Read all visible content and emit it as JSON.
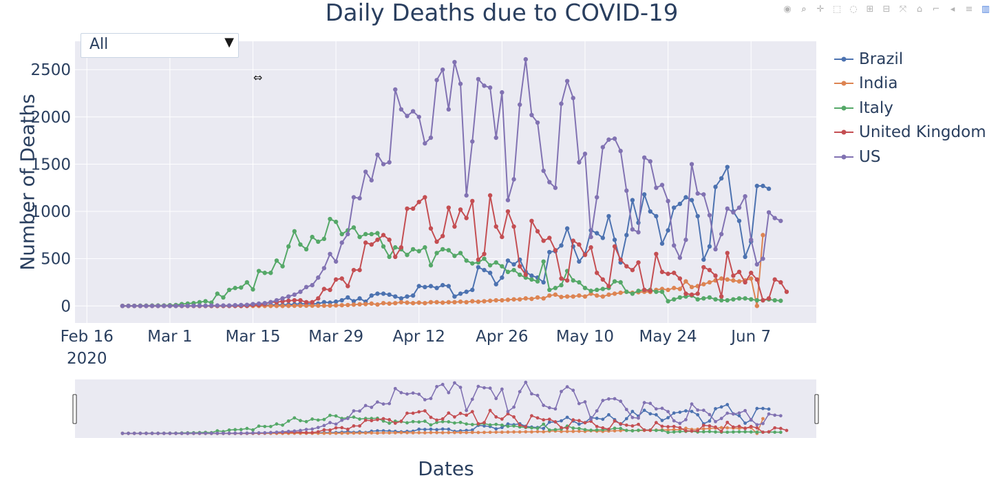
{
  "title": "Daily Deaths due to COVID-19",
  "dropdown": {
    "value": "All",
    "arrow": "▼"
  },
  "axes": {
    "x_title": "Dates",
    "y_title": "Number of Deaths",
    "x_year_label": "2020"
  },
  "modebar": [
    "camera-icon",
    "zoom-icon",
    "pan-icon",
    "box-select-icon",
    "lasso-icon",
    "zoom-in-icon",
    "zoom-out-icon",
    "autoscale-icon",
    "home-icon",
    "spike-lines-icon",
    "hover-closest-icon",
    "hover-compare-icon",
    "plotly-logo-icon"
  ],
  "chart_data": {
    "type": "line",
    "title": "Daily Deaths due to COVID-19",
    "xlabel": "Dates",
    "ylabel": "Number of Deaths",
    "x_start": "2020-02-22",
    "x_end": "2020-06-11",
    "x_range": [
      "2020-02-14",
      "2020-06-18"
    ],
    "ylim": [
      -180,
      2800
    ],
    "yticks": [
      0,
      500,
      1000,
      1500,
      2000,
      2500
    ],
    "xticks": [
      {
        "date": "2020-02-16",
        "label": "Feb 16"
      },
      {
        "date": "2020-03-01",
        "label": "Mar 1"
      },
      {
        "date": "2020-03-15",
        "label": "Mar 15"
      },
      {
        "date": "2020-03-29",
        "label": "Mar 29"
      },
      {
        "date": "2020-04-12",
        "label": "Apr 12"
      },
      {
        "date": "2020-04-26",
        "label": "Apr 26"
      },
      {
        "date": "2020-05-10",
        "label": "May 10"
      },
      {
        "date": "2020-05-24",
        "label": "May 24"
      },
      {
        "date": "2020-06-07",
        "label": "Jun 7"
      }
    ],
    "grid": true,
    "legend_position": "right",
    "series": [
      {
        "name": "Brazil",
        "color": "#4c72b0",
        "values": [
          0,
          0,
          0,
          0,
          0,
          0,
          0,
          0,
          0,
          0,
          0,
          0,
          0,
          0,
          0,
          0,
          0,
          0,
          0,
          0,
          0,
          1,
          3,
          3,
          7,
          9,
          12,
          11,
          15,
          18,
          22,
          23,
          20,
          25,
          40,
          35,
          45,
          60,
          90,
          50,
          80,
          45,
          110,
          130,
          130,
          120,
          100,
          80,
          100,
          110,
          210,
          200,
          210,
          190,
          220,
          210,
          100,
          130,
          150,
          170,
          410,
          380,
          350,
          230,
          300,
          480,
          440,
          490,
          360,
          320,
          300,
          250,
          570,
          580,
          640,
          820,
          630,
          470,
          550,
          800,
          770,
          720,
          950,
          700,
          460,
          750,
          1120,
          880,
          1180,
          1000,
          950,
          660,
          800,
          1040,
          1080,
          1150,
          1120,
          950,
          490,
          630,
          1260,
          1350,
          1470,
          1000,
          900,
          520,
          680,
          1270,
          1270,
          1240
        ]
      },
      {
        "name": "India",
        "color": "#dd8452",
        "values": [
          0,
          0,
          0,
          0,
          0,
          0,
          0,
          0,
          0,
          0,
          0,
          0,
          0,
          0,
          0,
          0,
          0,
          0,
          0,
          0,
          0,
          0,
          0,
          0,
          0,
          0,
          0,
          0,
          1,
          2,
          3,
          3,
          3,
          3,
          3,
          4,
          6,
          8,
          10,
          14,
          18,
          20,
          25,
          15,
          30,
          25,
          30,
          40,
          35,
          30,
          35,
          30,
          40,
          40,
          35,
          40,
          40,
          45,
          40,
          50,
          45,
          50,
          55,
          60,
          60,
          65,
          70,
          70,
          80,
          75,
          90,
          80,
          110,
          120,
          95,
          100,
          100,
          110,
          100,
          130,
          110,
          100,
          120,
          130,
          140,
          150,
          140,
          145,
          150,
          148,
          170,
          180,
          170,
          190,
          180,
          260,
          200,
          210,
          230,
          250,
          270,
          290,
          280,
          270,
          260,
          270,
          290,
          0,
          750
        ]
      },
      {
        "name": "Italy",
        "color": "#55a868",
        "values": [
          1,
          2,
          2,
          3,
          3,
          4,
          5,
          5,
          8,
          10,
          20,
          25,
          30,
          40,
          50,
          35,
          130,
          90,
          170,
          190,
          195,
          250,
          175,
          370,
          350,
          350,
          480,
          420,
          630,
          790,
          650,
          600,
          730,
          680,
          710,
          920,
          890,
          760,
          800,
          830,
          730,
          760,
          760,
          770,
          630,
          520,
          620,
          600,
          540,
          600,
          580,
          620,
          430,
          560,
          600,
          590,
          530,
          560,
          480,
          450,
          460,
          500,
          430,
          460,
          420,
          360,
          380,
          330,
          300,
          280,
          260,
          470,
          170,
          190,
          220,
          370,
          270,
          250,
          190,
          160,
          170,
          180,
          190,
          260,
          250,
          150,
          130,
          160,
          170,
          170,
          150,
          150,
          50,
          70,
          90,
          100,
          110,
          70,
          80,
          90,
          70,
          60,
          60,
          70,
          80,
          80,
          70,
          60,
          60,
          70,
          60,
          55
        ]
      },
      {
        "name": "United Kingdom",
        "color": "#c44e52",
        "values": [
          0,
          0,
          0,
          0,
          0,
          0,
          0,
          0,
          0,
          0,
          0,
          0,
          0,
          0,
          0,
          0,
          0,
          0,
          0,
          0,
          0,
          1,
          10,
          10,
          20,
          40,
          40,
          50,
          55,
          60,
          60,
          40,
          40,
          80,
          180,
          170,
          280,
          290,
          210,
          380,
          380,
          670,
          650,
          700,
          750,
          700,
          520,
          620,
          1030,
          1030,
          1100,
          1150,
          820,
          680,
          740,
          1040,
          840,
          1020,
          930,
          1110,
          490,
          550,
          1170,
          840,
          730,
          1000,
          840,
          420,
          330,
          900,
          790,
          690,
          720,
          590,
          290,
          270,
          690,
          650,
          540,
          620,
          350,
          280,
          210,
          630,
          490,
          420,
          380,
          460,
          170,
          160,
          550,
          360,
          340,
          350,
          290,
          130,
          120,
          130,
          410,
          380,
          320,
          100,
          560,
          320,
          360,
          250,
          350,
          280,
          60,
          80,
          280,
          250,
          150
        ]
      },
      {
        "name": "US",
        "color": "#8172b2",
        "values": [
          0,
          0,
          0,
          0,
          0,
          0,
          0,
          0,
          0,
          0,
          1,
          1,
          2,
          3,
          2,
          4,
          5,
          5,
          5,
          8,
          10,
          12,
          20,
          25,
          30,
          40,
          60,
          80,
          100,
          120,
          150,
          200,
          220,
          300,
          400,
          550,
          470,
          670,
          760,
          1150,
          1140,
          1420,
          1330,
          1600,
          1500,
          1520,
          2290,
          2080,
          2010,
          2060,
          2000,
          1720,
          1780,
          2390,
          2500,
          2080,
          2580,
          2350,
          1170,
          1740,
          2400,
          2330,
          2310,
          1780,
          2260,
          1120,
          1340,
          2130,
          2610,
          2020,
          1940,
          1430,
          1310,
          1250,
          2140,
          2380,
          2200,
          1520,
          1610,
          730,
          1150,
          1680,
          1760,
          1770,
          1640,
          1220,
          810,
          780,
          1570,
          1530,
          1250,
          1280,
          1110,
          640,
          510,
          700,
          1500,
          1190,
          1180,
          960,
          600,
          760,
          1030,
          990,
          1040,
          1160,
          700,
          440,
          500,
          990,
          930,
          900
        ]
      }
    ]
  }
}
